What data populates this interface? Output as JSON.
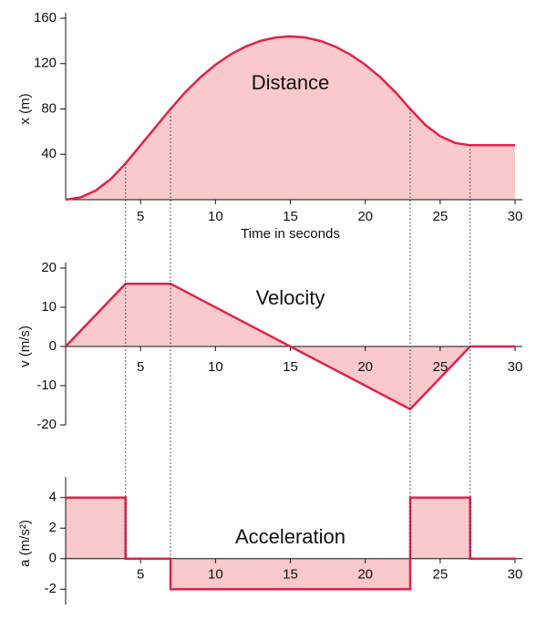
{
  "chart_data": [
    {
      "type": "line",
      "annotation": "Distance",
      "xlabel": "Time in seconds",
      "ylabel": "x (m)",
      "x": [
        0,
        1,
        2,
        3,
        4,
        5,
        6,
        7,
        8,
        9,
        10,
        11,
        12,
        13,
        14,
        15,
        16,
        17,
        18,
        19,
        20,
        21,
        22,
        23,
        24,
        25,
        26,
        27,
        28,
        29,
        30
      ],
      "values": [
        0,
        2,
        8,
        18,
        32,
        48,
        64,
        80,
        95,
        108,
        119,
        128,
        135,
        140,
        143,
        144,
        143,
        140,
        135,
        128,
        119,
        108,
        95,
        80,
        66,
        56,
        50,
        48,
        48,
        48,
        48
      ],
      "color": "#e0234a",
      "fill": "#f9c9cb",
      "xlim": [
        0,
        30
      ],
      "ylim": [
        0,
        160
      ],
      "xticks": [
        5,
        10,
        15,
        20,
        25,
        30
      ],
      "yticks": [
        40,
        80,
        120,
        160
      ]
    },
    {
      "type": "line",
      "annotation": "Velocity",
      "ylabel": "v (m/s)",
      "x": [
        0,
        4,
        7,
        15,
        23,
        27,
        30
      ],
      "values": [
        0,
        16,
        16,
        0,
        -16,
        0,
        0
      ],
      "color": "#e0234a",
      "fill": "#f9c9cb",
      "xlim": [
        0,
        30
      ],
      "ylim": [
        -20,
        20
      ],
      "xticks": [
        5,
        10,
        15,
        20,
        25,
        30
      ],
      "yticks": [
        -20,
        -10,
        0,
        10,
        20
      ]
    },
    {
      "type": "line",
      "annotation": "Acceleration",
      "ylabel": "a (m/s²)",
      "x": [
        0,
        4,
        4,
        7,
        7,
        23,
        23,
        27,
        27,
        30
      ],
      "values": [
        4,
        4,
        0,
        0,
        -2,
        -2,
        4,
        4,
        0,
        0
      ],
      "color": "#e0234a",
      "fill": "#f9c9cb",
      "xlim": [
        0,
        30
      ],
      "ylim": [
        -3,
        5
      ],
      "xticks": [
        5,
        10,
        15,
        20,
        25,
        30
      ],
      "yticks": [
        -2,
        0,
        2,
        4
      ]
    }
  ],
  "guides": [
    4,
    7,
    23,
    27
  ]
}
